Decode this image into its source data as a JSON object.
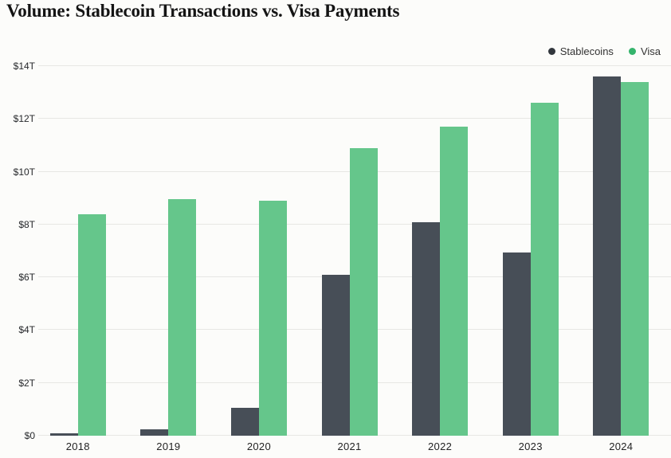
{
  "title": "Volume: Stablecoin Transactions vs. Visa Payments",
  "legend": {
    "items": [
      {
        "label": "Stablecoins",
        "color": "#32373d"
      },
      {
        "label": "Visa",
        "color": "#35b46c"
      }
    ]
  },
  "colors": {
    "stablecoins_bar": "#474e57",
    "visa_bar": "#65c68b",
    "gridline": "#e7e7e4",
    "background": "#fcfcfa",
    "title_text": "#141414",
    "axis_text": "#26282b"
  },
  "chart_data": {
    "type": "bar",
    "title": "Volume: Stablecoin Transactions vs. Visa Payments",
    "unit": "trillion USD",
    "categories": [
      "2018",
      "2019",
      "2020",
      "2021",
      "2022",
      "2023",
      "2024"
    ],
    "series": [
      {
        "name": "Stablecoins",
        "color": "#474e57",
        "values": [
          0.1,
          0.25,
          1.05,
          6.1,
          8.1,
          6.95,
          13.6
        ]
      },
      {
        "name": "Visa",
        "color": "#65c68b",
        "values": [
          8.4,
          8.95,
          8.9,
          10.9,
          11.7,
          12.6,
          13.4
        ]
      }
    ],
    "xlabel": "",
    "ylabel": "",
    "ylim": [
      0,
      14
    ],
    "yticks": [
      {
        "value": 0,
        "label": "$0"
      },
      {
        "value": 2,
        "label": "$2T"
      },
      {
        "value": 4,
        "label": "$4T"
      },
      {
        "value": 6,
        "label": "$6T"
      },
      {
        "value": 8,
        "label": "$8T"
      },
      {
        "value": 10,
        "label": "$10T"
      },
      {
        "value": 12,
        "label": "$12T"
      },
      {
        "value": 14,
        "label": "$14T"
      }
    ],
    "grid": true,
    "legend_position": "top-right"
  }
}
